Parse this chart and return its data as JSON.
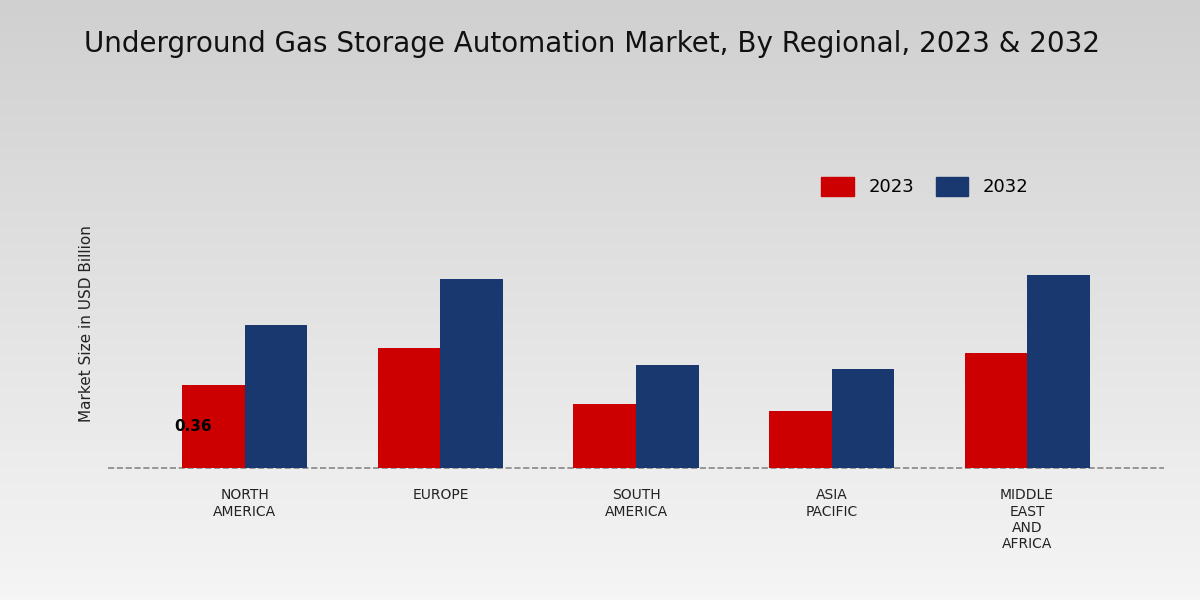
{
  "title": "Underground Gas Storage Automation Market, By Regional, 2023 & 2032",
  "ylabel": "Market Size in USD Billion",
  "categories": [
    "NORTH\nAMERICA",
    "EUROPE",
    "SOUTH\nAMERICA",
    "ASIA\nPACIFIC",
    "MIDDLE\nEAST\nAND\nAFRICA"
  ],
  "values_2023": [
    0.36,
    0.52,
    0.28,
    0.25,
    0.5
  ],
  "values_2032": [
    0.62,
    0.82,
    0.45,
    0.43,
    0.84
  ],
  "color_2023": "#cc0000",
  "color_2032": "#1a3870",
  "annotation_value": "0.36",
  "annotation_bar": 0,
  "bar_width": 0.32,
  "legend_labels": [
    "2023",
    "2032"
  ],
  "background_top": "#d0d0d0",
  "background_bottom": "#f5f5f5",
  "title_fontsize": 20,
  "label_fontsize": 11,
  "tick_fontsize": 10,
  "legend_fontsize": 13
}
